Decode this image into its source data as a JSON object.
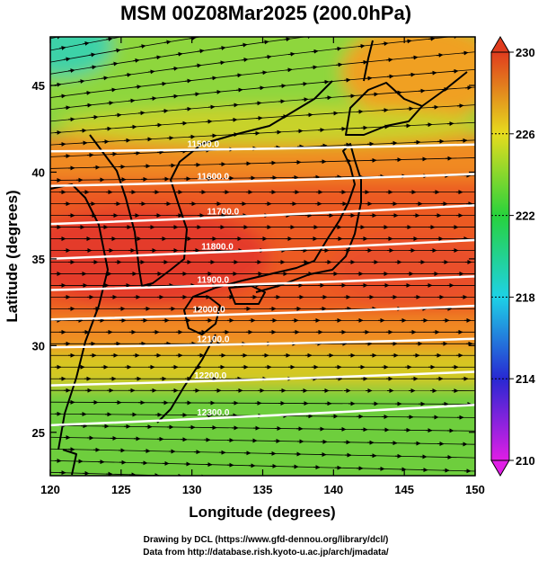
{
  "figure": {
    "title": "MSM 00Z08Mar2025 (200.0hPa)",
    "credits": [
      "Drawing by DCL (https://www.gfd-dennou.org/library/dcl/)",
      "Data from http://database.rish.kyoto-u.ac.jp/arch/jmadata/"
    ]
  },
  "chart_data": {
    "type": "heatmap",
    "title": "MSM 00Z08Mar2025 (200.0hPa)",
    "xlabel": "Longitude (degrees)",
    "ylabel": "Latitude  (degrees)",
    "xlim": [
      120,
      150
    ],
    "ylim": [
      22.5,
      47.8
    ],
    "xticks": [
      120,
      125,
      130,
      135,
      140,
      145,
      150
    ],
    "yticks": [
      25,
      30,
      35,
      40,
      45
    ],
    "colorbar": {
      "min": 210,
      "max": 230,
      "ticks": [
        210,
        214,
        218,
        222,
        226,
        230
      ],
      "colors": [
        "#e01ee6",
        "#2828d2",
        "#1ed2e6",
        "#28d23c",
        "#e6dc1e",
        "#e03c1e"
      ]
    },
    "field": {
      "description_values": "temperature peak near 35-37N",
      "core_lat": 36.5,
      "core_value": 230,
      "south_value": 222,
      "north_value": 223,
      "northwest_corner_value": 218
    },
    "contours": [
      {
        "label": "11500.0",
        "lat_start": 41.2,
        "lat_end": 41.6,
        "label_lon": 130.8
      },
      {
        "label": "11600.0",
        "lat_start": 39.2,
        "lat_end": 39.9,
        "label_lon": 131.5
      },
      {
        "label": "11700.0",
        "lat_start": 37.0,
        "lat_end": 38.1,
        "label_lon": 132.2
      },
      {
        "label": "11800.0",
        "lat_start": 35.0,
        "lat_end": 36.1,
        "label_lon": 131.8
      },
      {
        "label": "11900.0",
        "lat_start": 33.2,
        "lat_end": 34.0,
        "label_lon": 131.5
      },
      {
        "label": "12000.0",
        "lat_start": 31.5,
        "lat_end": 32.3,
        "label_lon": 131.2
      },
      {
        "label": "12100.0",
        "lat_start": 29.9,
        "lat_end": 30.4,
        "label_lon": 131.5
      },
      {
        "label": "12200.0",
        "lat_start": 27.7,
        "lat_end": 28.5,
        "label_lon": 131.3
      },
      {
        "label": "12300.0",
        "lat_start": 25.4,
        "lat_end": 26.6,
        "label_lon": 131.5
      }
    ],
    "wind": {
      "direction": "eastward",
      "curvature": "northeastward in the north, slightly southward in the south"
    }
  }
}
